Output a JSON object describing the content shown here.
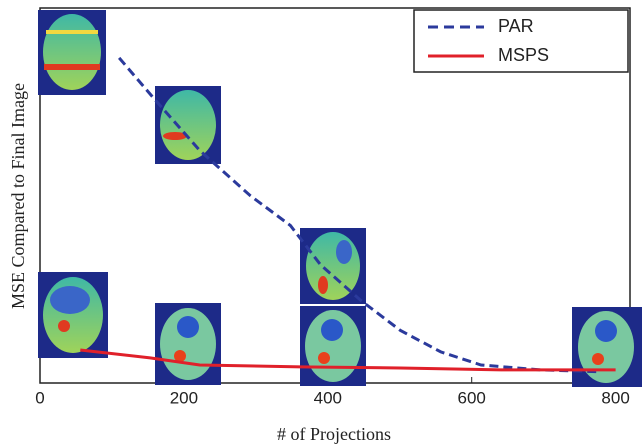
{
  "chart_data": {
    "type": "line",
    "x_label": "# of Projections",
    "y_label": "MSE Compared to Final Image",
    "xlim": [
      0,
      820
    ],
    "xticks": [
      0,
      200,
      400,
      600,
      800
    ],
    "ylim": [
      0,
      100
    ],
    "legend": "upper right",
    "series": [
      {
        "name": "PAR",
        "color": "#2b3a9c",
        "dash": true,
        "x": [
          110,
          160,
          222,
          292,
          348,
          390,
          446,
          501,
          557,
          613,
          696,
          780
        ],
        "values": [
          86.7,
          75.5,
          62,
          50,
          42,
          31.5,
          22,
          14,
          8.3,
          4.8,
          3.5,
          3
        ]
      },
      {
        "name": "MSPS",
        "color": "#e0202a",
        "dash": false,
        "x": [
          56,
          153,
          222,
          362,
          501,
          641,
          800
        ],
        "values": [
          8.8,
          6.7,
          4.8,
          4.3,
          4,
          3.5,
          3.5
        ]
      }
    ]
  }
}
